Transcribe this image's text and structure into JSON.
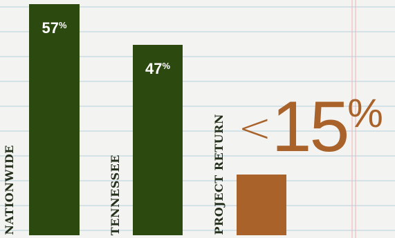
{
  "chart_data": {
    "type": "bar",
    "categories": [
      "NATIONWIDE",
      "TENNESSEE",
      "PROJECT RETURN"
    ],
    "values": [
      57,
      47,
      15
    ],
    "value_labels": [
      {
        "number": "57",
        "unit": "%"
      },
      {
        "number": "47",
        "unit": "%"
      },
      {
        "prefix": "<",
        "number": "15",
        "unit": "%"
      }
    ],
    "colors": [
      "#2c4a0f",
      "#2c4a0f",
      "#a8622a"
    ],
    "ylim": [
      0,
      57
    ],
    "grid": true
  },
  "colors": {
    "paper": "#f3f3f1",
    "rule_line": "#c9dde6",
    "margin_line": "#f0b3b3",
    "bar_green": "#2c4a0f",
    "accent_copper": "#a8622a"
  }
}
